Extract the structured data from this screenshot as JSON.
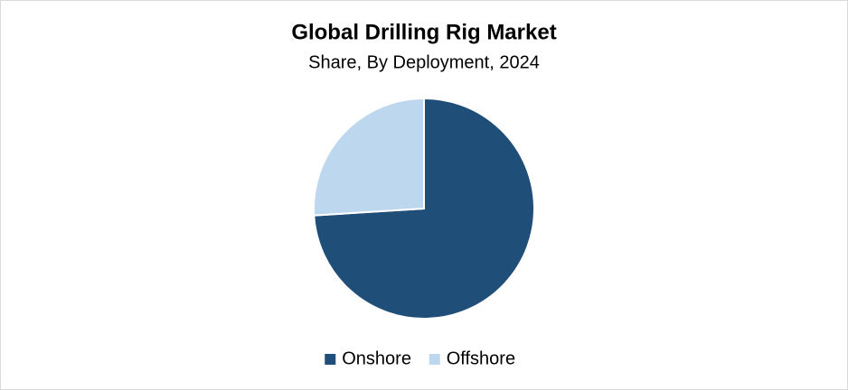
{
  "chart_data": {
    "type": "pie",
    "title": "Global Drilling Rig Market",
    "subtitle": "Share, By Deployment, 2024",
    "categories": [
      "Onshore",
      "Offshore"
    ],
    "values": [
      74,
      26
    ],
    "colors": [
      "#1f4e79",
      "#bdd7ee"
    ],
    "legend": "bottom"
  }
}
